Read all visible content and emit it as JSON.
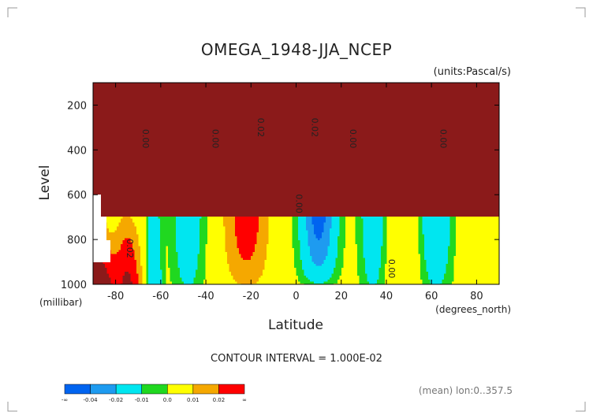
{
  "title": "OMEGA_1948-JJA_NCEP",
  "units_label": "(units:Pascal/s)",
  "contour_interval_text": "CONTOUR INTERVAL = 1.000E-02",
  "mean_text": "(mean) lon:0..357.5",
  "colors": {
    "c_m05": "#0064f0",
    "c_m03": "#1e9bf0",
    "c_m015": "#00e6f0",
    "c_m005": "#20d820",
    "c_p005": "#ffff00",
    "c_p015": "#f5a800",
    "c_p03": "#ff0000",
    "c_p05": "#8b1a1a"
  },
  "chart_data": {
    "type": "heatmap",
    "title": "OMEGA_1948-JJA_NCEP",
    "units": "(units:Pascal/s)",
    "xlabel": "Latitude",
    "xunit_label": "(degrees_north)",
    "ylabel": "Level",
    "yunit_label": "(millibar)",
    "xlim": [
      -90,
      90
    ],
    "ylim": [
      1000,
      100
    ],
    "x_ticks": [
      -80,
      -60,
      -40,
      -20,
      0,
      20,
      40,
      60,
      80
    ],
    "x_tick_labels": [
      "-80",
      "-60",
      "-40",
      "-20",
      "0",
      "20",
      "40",
      "60",
      "80"
    ],
    "y_ticks": [
      200,
      400,
      600,
      800,
      1000
    ],
    "y_tick_labels": [
      "200",
      "400",
      "600",
      "800",
      "1000"
    ],
    "contour_interval": 0.01,
    "contour_labels": [
      {
        "text": "0.00",
        "lat": -68,
        "lev": 350
      },
      {
        "text": "0.00",
        "lat": -37,
        "lev": 350
      },
      {
        "text": "0.02",
        "lat": -17,
        "lev": 300
      },
      {
        "text": "0.02",
        "lat": 7,
        "lev": 300
      },
      {
        "text": "0.00",
        "lat": 0,
        "lev": 640
      },
      {
        "text": "0.00",
        "lat": 24,
        "lev": 350
      },
      {
        "text": "0.00",
        "lat": 64,
        "lev": 350
      },
      {
        "text": "0.00",
        "lat": 41,
        "lev": 930
      },
      {
        "text": "0.02",
        "lat": -75,
        "lev": 840
      }
    ],
    "colorbar": {
      "labels": [
        "-∞",
        "-0.04",
        "-0.02",
        "-0.01",
        "0.0",
        "0.01",
        "0.02",
        "∞"
      ],
      "colors": [
        "#0064f0",
        "#1e9bf0",
        "#00e6f0",
        "#20d820",
        "#ffff00",
        "#f5a800",
        "#ff0000"
      ]
    },
    "grid": false,
    "legend_position": "bottom-left"
  }
}
